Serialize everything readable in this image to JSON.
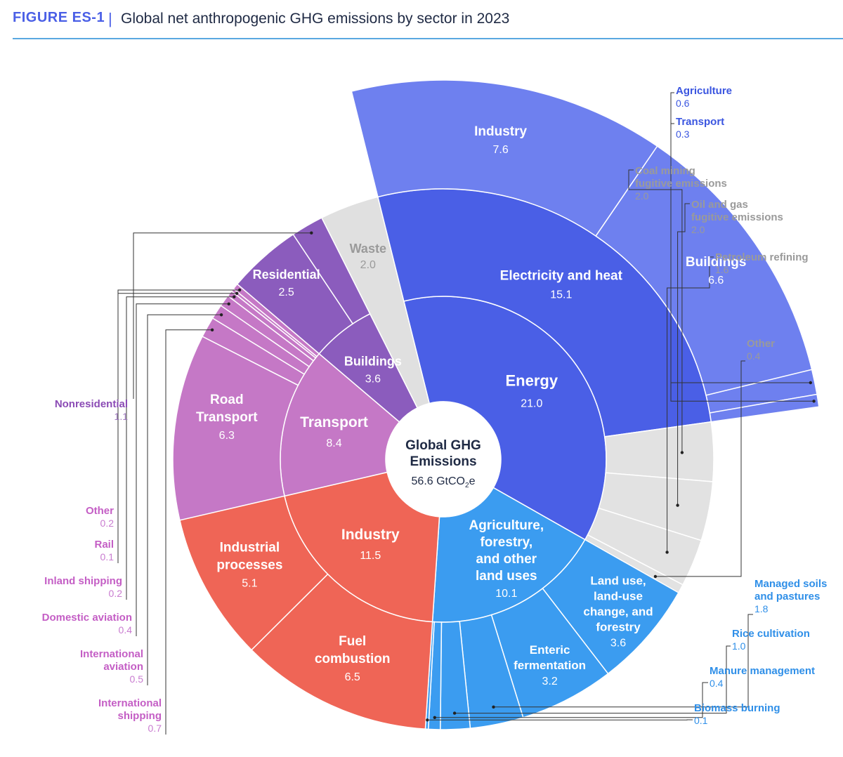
{
  "header": {
    "figure_label": "FIGURE ES-1",
    "separator": "|",
    "title": "Global net anthropogenic GHG emissions by sector in 2023"
  },
  "colors": {
    "energy_inner": "#4a5fe6",
    "energy_outer": "#6e80ef",
    "energy_fugitive": "#e2e2e2",
    "waste": "#e0e0e0",
    "buildings": "#8b5cbd",
    "transport": "#c578c6",
    "industry": "#ef6556",
    "agriculture": "#3b9cf0",
    "label_blue_dark": "#3a55e0",
    "label_blue_light": "#2f8fe8",
    "label_gray": "#9a9a9a",
    "label_purple": "#8b4bb5",
    "label_pink": "#c45ec5"
  },
  "center": {
    "title_line1": "Global GHG",
    "title_line2": "Emissions",
    "value": "56.6 GtCO",
    "value_sub": "2",
    "value_tail": "e"
  },
  "chart_data": {
    "type": "sunburst",
    "total": 56.6,
    "unit": "GtCO2e",
    "sectors": [
      {
        "name": "Energy",
        "value": 21.0,
        "sub": [
          {
            "name": "Electricity and heat",
            "value": 15.1,
            "sub": [
              {
                "name": "Industry",
                "value": 7.6
              },
              {
                "name": "Buildings",
                "value": 6.6
              },
              {
                "name": "Agriculture",
                "value": 0.6
              },
              {
                "name": "Transport",
                "value": 0.3
              }
            ]
          },
          {
            "name": "Coal mining fugitive emissions",
            "value": 2.0
          },
          {
            "name": "Oil and gas fugitive emissions",
            "value": 2.0
          },
          {
            "name": "Petroleum refining",
            "value": 1.6
          },
          {
            "name": "Other",
            "value": 0.4
          }
        ]
      },
      {
        "name": "Agriculture, forestry, and other land uses",
        "value": 10.1,
        "sub": [
          {
            "name": "Land use, land-use change, and forestry",
            "value": 3.6
          },
          {
            "name": "Enteric fermentation",
            "value": 3.2
          },
          {
            "name": "Managed soils and pastures",
            "value": 1.8
          },
          {
            "name": "Rice cultivation",
            "value": 1.0
          },
          {
            "name": "Manure management",
            "value": 0.4
          },
          {
            "name": "Biomass burning",
            "value": 0.1
          }
        ]
      },
      {
        "name": "Industry",
        "value": 11.5,
        "sub": [
          {
            "name": "Fuel combustion",
            "value": 6.5
          },
          {
            "name": "Industrial processes",
            "value": 5.1
          }
        ]
      },
      {
        "name": "Transport",
        "value": 8.4,
        "sub": [
          {
            "name": "Road Transport",
            "value": 6.3
          },
          {
            "name": "International shipping",
            "value": 0.7
          },
          {
            "name": "International aviation",
            "value": 0.5
          },
          {
            "name": "Domestic aviation",
            "value": 0.4
          },
          {
            "name": "Inland shipping",
            "value": 0.2
          },
          {
            "name": "Rail",
            "value": 0.1
          },
          {
            "name": "Other",
            "value": 0.2
          }
        ]
      },
      {
        "name": "Buildings",
        "value": 3.6,
        "sub": [
          {
            "name": "Residential",
            "value": 2.5
          },
          {
            "name": "Nonresidential",
            "value": 1.1
          }
        ]
      },
      {
        "name": "Waste",
        "value": 2.0
      }
    ],
    "labels": {
      "energy": {
        "name": "Energy",
        "value": "21.0"
      },
      "elec": {
        "name": "Electricity and heat",
        "value": "15.1"
      },
      "elec_industry": {
        "name": "Industry",
        "value": "7.6"
      },
      "elec_buildings": {
        "name": "Buildings",
        "value": "6.6"
      },
      "elec_agriculture": {
        "name": "Agriculture",
        "value": "0.6"
      },
      "elec_transport": {
        "name": "Transport",
        "value": "0.3"
      },
      "coal": {
        "name1": "Coal mining",
        "name2": "fugitive emissions",
        "value": "2.0"
      },
      "oilgas": {
        "name1": "Oil and gas",
        "name2": "fugitive emissions",
        "value": "2.0"
      },
      "refining": {
        "name": "Petroleum refining",
        "value": "1.6"
      },
      "energy_other": {
        "name": "Other",
        "value": "0.4"
      },
      "afolu": {
        "name1": "Agriculture,",
        "name2": "forestry,",
        "name3": "and other",
        "name4": "land uses",
        "value": "10.1"
      },
      "lulucf": {
        "name1": "Land use,",
        "name2": "land-use",
        "name3": "change, and",
        "name4": "forestry",
        "value": "3.6"
      },
      "enteric": {
        "name1": "Enteric",
        "name2": "fermentation",
        "value": "3.2"
      },
      "soils": {
        "name1": "Managed soils",
        "name2": "and pastures",
        "value": "1.8"
      },
      "rice": {
        "name": "Rice cultivation",
        "value": "1.0"
      },
      "manure": {
        "name": "Manure management",
        "value": "0.4"
      },
      "biomass": {
        "name": "Biomass burning",
        "value": "0.1"
      },
      "industry": {
        "name": "Industry",
        "value": "11.5"
      },
      "fuel": {
        "name1": "Fuel",
        "name2": "combustion",
        "value": "6.5"
      },
      "processes": {
        "name1": "Industrial",
        "name2": "processes",
        "value": "5.1"
      },
      "transport": {
        "name": "Transport",
        "value": "8.4"
      },
      "road": {
        "name1": "Road",
        "name2": "Transport",
        "value": "6.3"
      },
      "intl_shipping": {
        "name1": "International",
        "name2": "shipping",
        "value": "0.7"
      },
      "intl_aviation": {
        "name1": "International",
        "name2": "aviation",
        "value": "0.5"
      },
      "dom_aviation": {
        "name": "Domestic aviation",
        "value": "0.4"
      },
      "inland": {
        "name": "Inland shipping",
        "value": "0.2"
      },
      "rail": {
        "name": "Rail",
        "value": "0.1"
      },
      "transport_other": {
        "name": "Other",
        "value": "0.2"
      },
      "buildings": {
        "name": "Buildings",
        "value": "3.6"
      },
      "residential": {
        "name": "Residential",
        "value": "2.5"
      },
      "nonresidential": {
        "name": "Nonresidential",
        "value": "1.1"
      },
      "waste": {
        "name": "Waste",
        "value": "2.0"
      }
    }
  }
}
